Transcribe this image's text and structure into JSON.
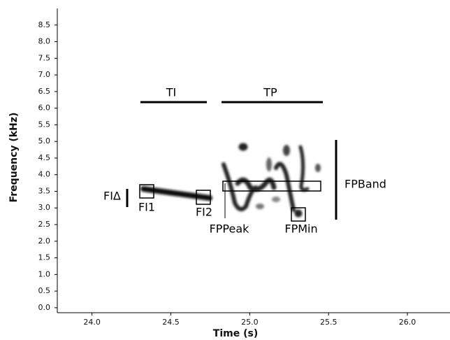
{
  "chart_data": {
    "type": "spectrogram",
    "x_label": "Time (s)",
    "y_label": "Frequency (kHz)",
    "xlim": [
      23.78,
      26.27
    ],
    "xticks": [
      {
        "value": 24,
        "label": "24.0"
      },
      24.5,
      {
        "value": 25,
        "label": "25.0"
      },
      25.5,
      {
        "value": 26,
        "label": "26.0"
      }
    ],
    "ylim": [
      -0.15,
      9.0
    ],
    "yticks": [
      {
        "value": 0,
        "label": "0.0"
      },
      0.5,
      {
        "value": 1,
        "label": "1.0"
      },
      1.5,
      {
        "value": 2,
        "label": "2.0"
      },
      2.5,
      {
        "value": 3,
        "label": "3.0"
      },
      3.5,
      {
        "value": 4,
        "label": "4.0"
      },
      4.5,
      {
        "value": 5,
        "label": "5.0"
      },
      5.5,
      {
        "value": 6,
        "label": "6.0"
      },
      6.5,
      {
        "value": 7,
        "label": "7.0"
      },
      7.5,
      {
        "value": 8,
        "label": "8.0"
      },
      8.5
    ],
    "annotations": [
      "TI",
      "TP",
      "FPBand",
      "FIΔ",
      "FI1",
      "FI2",
      "FPPeak",
      "FPMin"
    ]
  }
}
